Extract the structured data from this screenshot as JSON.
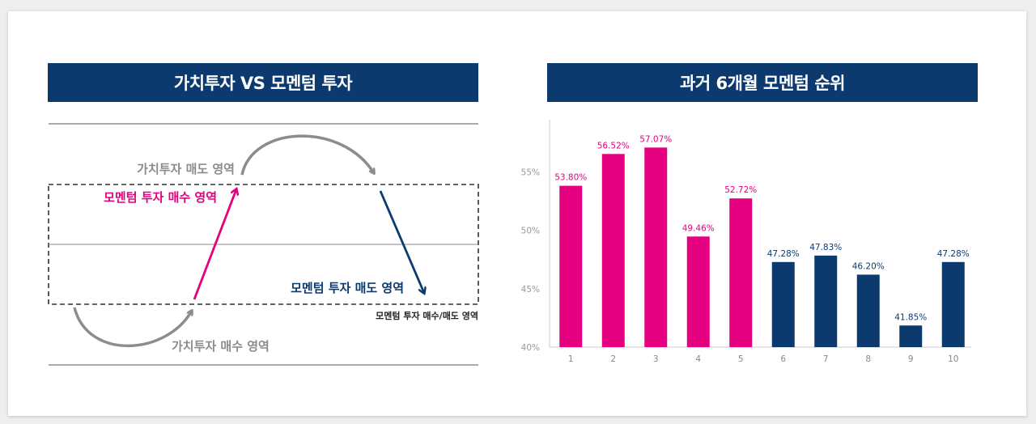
{
  "left_panel": {
    "title": "가치투자 VS 모멘텀 투자",
    "labels": {
      "value_sell_zone": "가치투자 매도 영역",
      "momentum_buy_zone": "모멘텀 투자 매수 영역",
      "momentum_sell_zone": "모멘텀 투자 매도 영역",
      "momentum_zone_caption": "모멘텀 투자 매수/매도 영역",
      "value_buy_zone": "가치투자 매수 영역"
    },
    "colors": {
      "momentum_buy": "#e4007f",
      "momentum_sell": "#0d3a6e",
      "value": "#8c8c8c"
    }
  },
  "right_panel": {
    "title": "과거 6개월 모멘텀 순위"
  },
  "colors": {
    "banner": "#0d3a6e",
    "pink": "#e4007f",
    "navy": "#0d3a6e"
  },
  "chart_data": {
    "type": "bar",
    "title": "과거 6개월 모멘텀 순위",
    "categories": [
      "1",
      "2",
      "3",
      "4",
      "5",
      "6",
      "7",
      "8",
      "9",
      "10"
    ],
    "values": [
      53.8,
      56.52,
      57.07,
      49.46,
      52.72,
      47.28,
      47.83,
      46.2,
      41.85,
      47.28
    ],
    "value_labels": [
      "53.80%",
      "56.52%",
      "57.07%",
      "49.46%",
      "52.72%",
      "47.28%",
      "47.83%",
      "46.20%",
      "41.85%",
      "47.28%"
    ],
    "bar_colors": [
      "#e4007f",
      "#e4007f",
      "#e4007f",
      "#e4007f",
      "#e4007f",
      "#0d3a6e",
      "#0d3a6e",
      "#0d3a6e",
      "#0d3a6e",
      "#0d3a6e"
    ],
    "yticks": [
      40,
      45,
      50,
      55
    ],
    "ytick_labels": [
      "40%",
      "45%",
      "50%",
      "55%"
    ],
    "ylim": [
      40,
      60
    ],
    "xlabel": "",
    "ylabel": "",
    "grid": false
  }
}
